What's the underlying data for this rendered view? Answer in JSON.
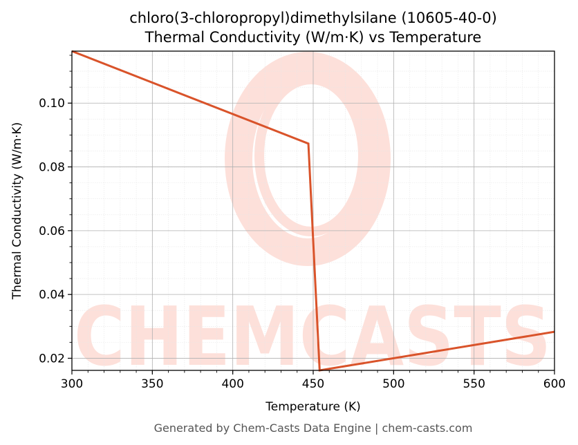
{
  "chart_data": {
    "type": "line",
    "title": "chloro(3-chloropropyl)dimethylsilane (10605-40-0)",
    "subtitle": "Thermal Conductivity (W/m·K) vs Temperature",
    "xlabel": "Temperature (K)",
    "ylabel": "Thermal Conductivity (W/m·K)",
    "xlim": [
      300,
      600
    ],
    "ylim": [
      0.0162,
      0.1163
    ],
    "xticks": [
      300,
      350,
      400,
      450,
      500,
      550,
      600
    ],
    "yticks": [
      0.02,
      0.04,
      0.06,
      0.08,
      0.1
    ],
    "ytick_labels": [
      "0.02",
      "0.04",
      "0.06",
      "0.08",
      "0.10"
    ],
    "grid": true,
    "series": [
      {
        "x": [
          300,
          447,
          454,
          600
        ],
        "y": [
          0.1163,
          0.0873,
          0.0162,
          0.0283
        ],
        "color": "#d9532a"
      }
    ]
  },
  "watermark": {
    "text": "CHEMCASTS",
    "color": "#fde0da"
  },
  "footer": {
    "text": "Generated by Chem-Casts Data Engine | chem-casts.com"
  }
}
